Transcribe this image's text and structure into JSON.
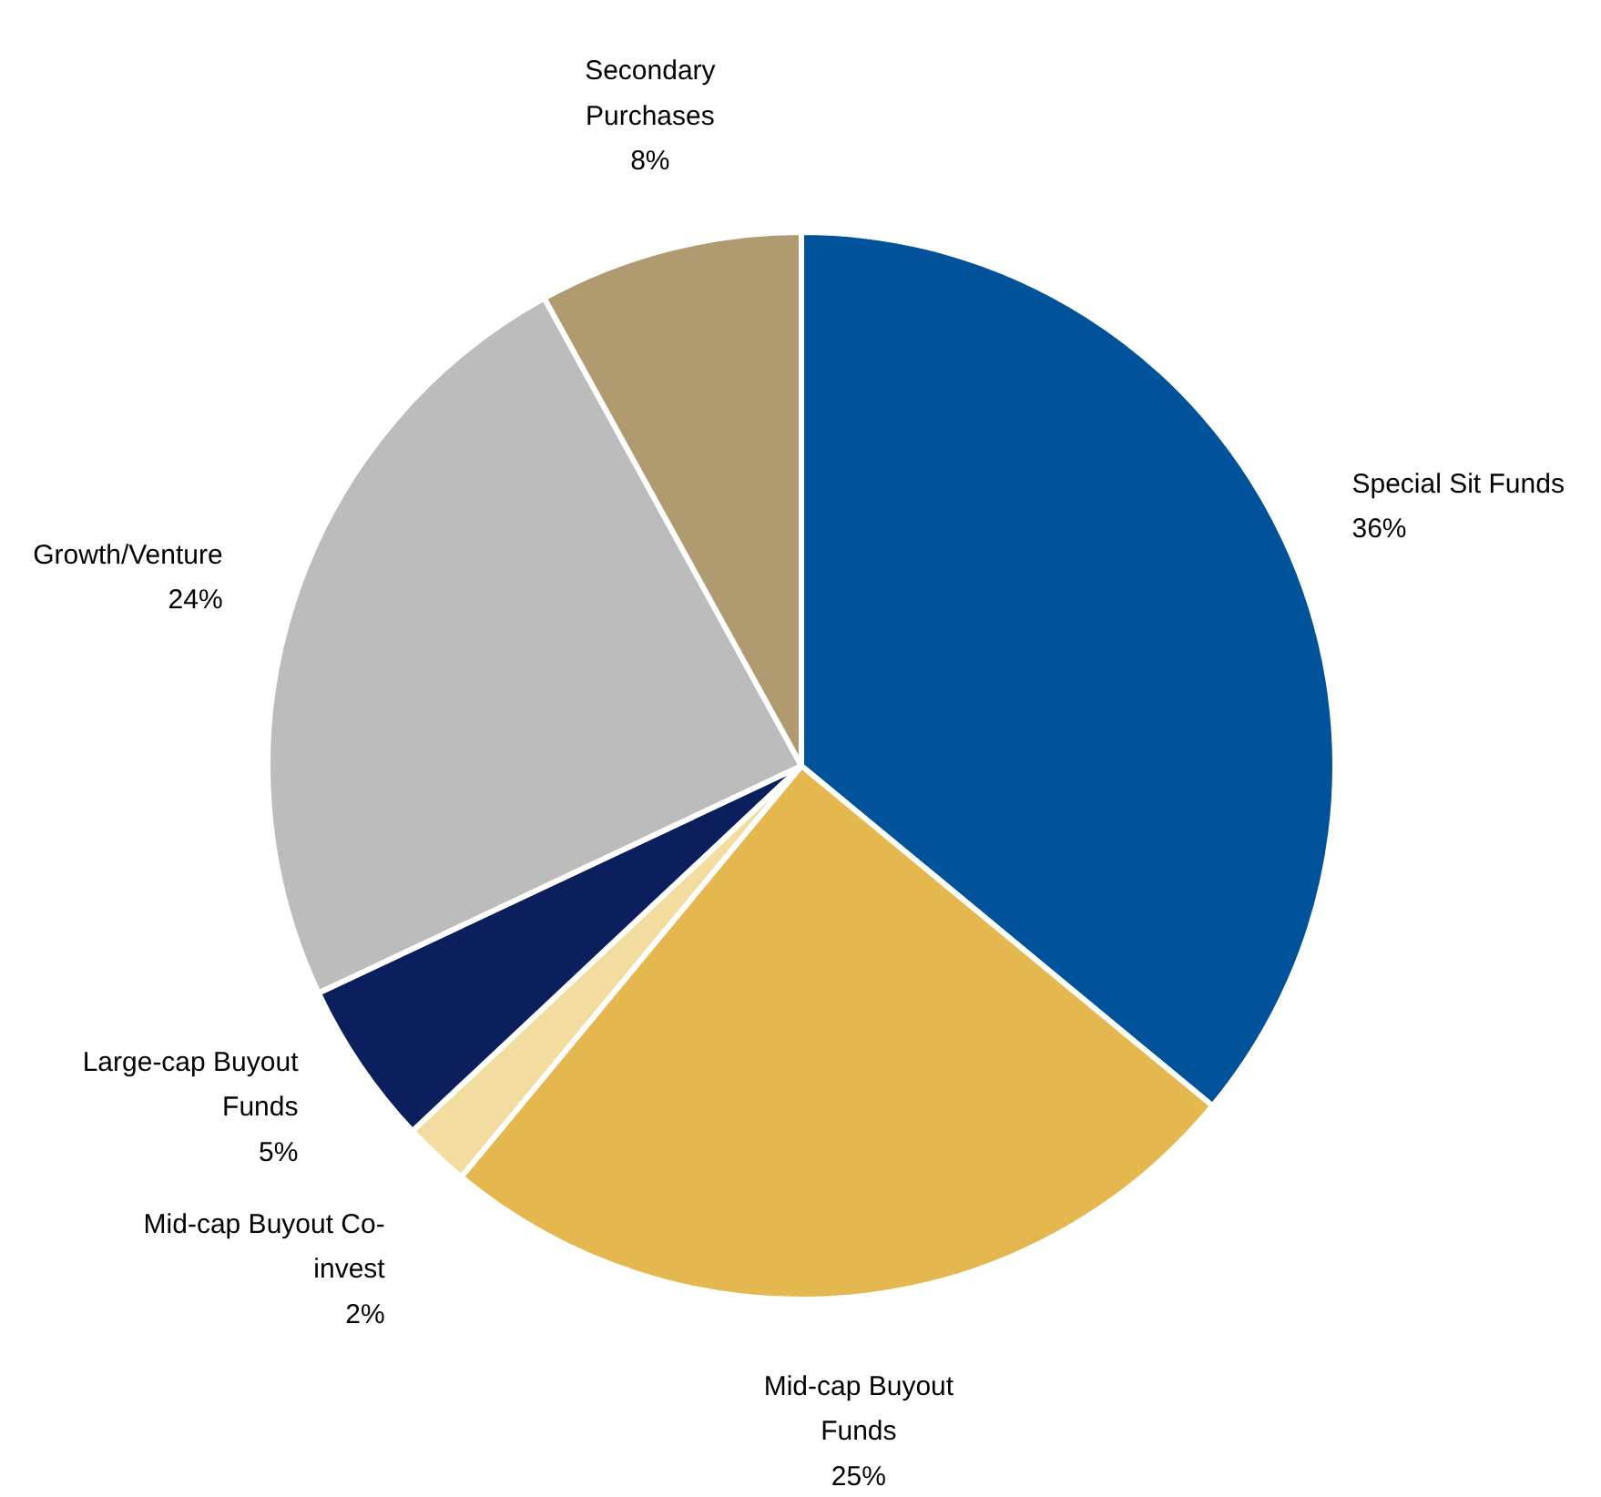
{
  "chart_data": {
    "type": "pie",
    "categories": [
      "Special Sit Funds",
      "Mid-cap Buyout\nFunds",
      "Mid-cap Buyout Co-\ninvest",
      "Large-cap Buyout\nFunds",
      "Growth/Venture",
      "Secondary\nPurchases"
    ],
    "values": [
      36,
      25,
      2,
      5,
      24,
      8
    ],
    "value_labels": [
      "36%",
      "25%",
      "2%",
      "5%",
      "24%",
      "8%"
    ],
    "colors": [
      "#00529b",
      "#e5b84f",
      "#f3dca0",
      "#0b1f5c",
      "#bcbcbc",
      "#b09b70"
    ]
  }
}
